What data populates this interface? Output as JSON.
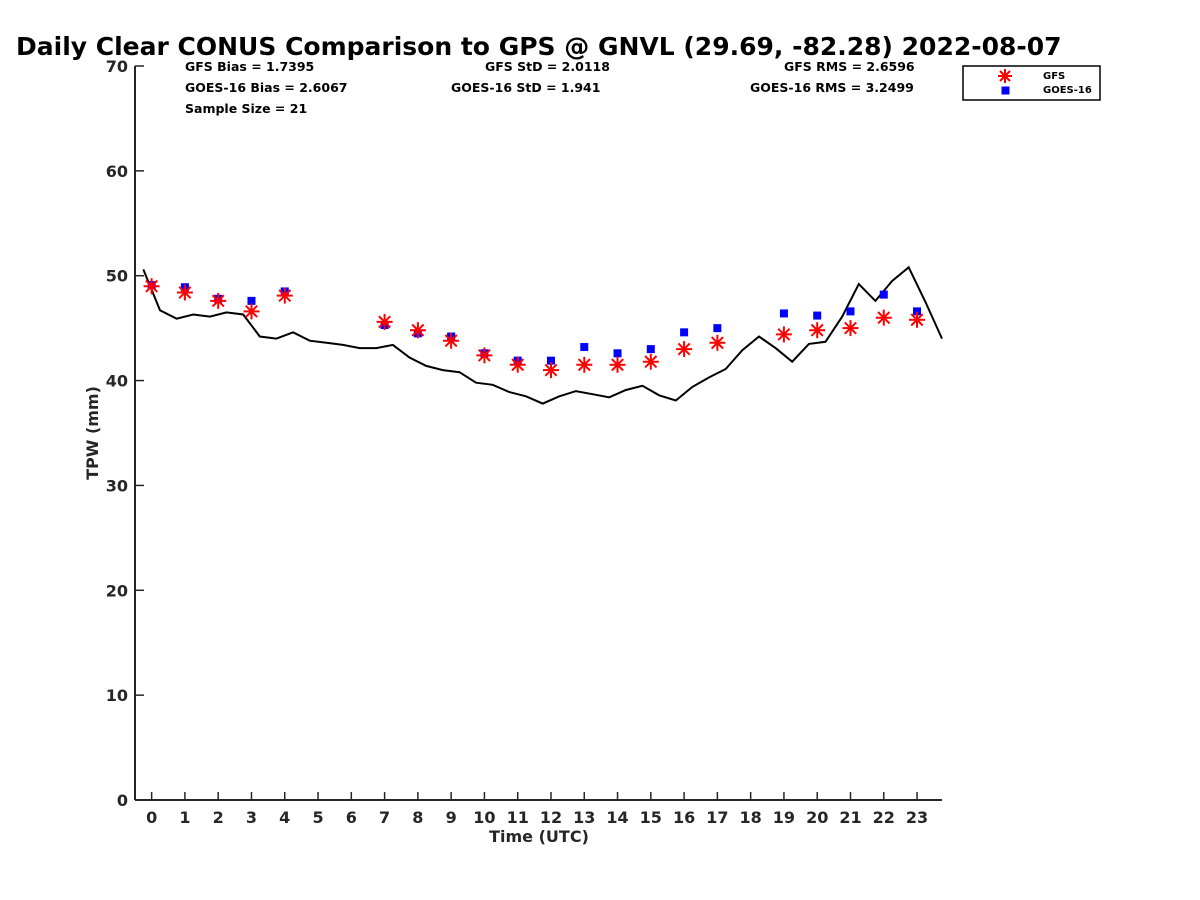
{
  "chart_data": {
    "type": "scatter",
    "title": "Daily Clear CONUS Comparison to GPS @ GNVL (29.69, -82.28) 2022-08-07",
    "xlabel": "Time (UTC)",
    "ylabel": "TPW (mm)",
    "xlim": [
      -0.5,
      23.75
    ],
    "ylim": [
      0,
      70
    ],
    "x_ticks": [
      "0",
      "1",
      "2",
      "3",
      "4",
      "5",
      "6",
      "7",
      "8",
      "9",
      "10",
      "11",
      "12",
      "13",
      "14",
      "15",
      "16",
      "17",
      "18",
      "19",
      "20",
      "21",
      "22",
      "23"
    ],
    "y_ticks": [
      "0",
      "10",
      "20",
      "30",
      "40",
      "50",
      "60",
      "70"
    ],
    "grid": false,
    "legend_position": "top-right",
    "stats": [
      "GFS Bias = 1.7395",
      "GFS StD = 2.0118",
      "GFS RMS = 2.6596",
      "GOES-16 Bias = 2.6067",
      "GOES-16 StD = 1.941",
      "GOES-16 RMS = 3.2499",
      "Sample Size = 21"
    ],
    "series": [
      {
        "name": "GFS",
        "marker": "asterisk",
        "color": "#ff0000",
        "points": [
          [
            0,
            49.0
          ],
          [
            1,
            48.4
          ],
          [
            2,
            47.6
          ],
          [
            3,
            46.6
          ],
          [
            4,
            48.1
          ],
          [
            7,
            45.6
          ],
          [
            8,
            44.8
          ],
          [
            9,
            43.8
          ],
          [
            10,
            42.4
          ],
          [
            11,
            41.5
          ],
          [
            12,
            41.0
          ],
          [
            13,
            41.5
          ],
          [
            14,
            41.5
          ],
          [
            15,
            41.8
          ],
          [
            16,
            43.0
          ],
          [
            17,
            43.6
          ],
          [
            19,
            44.4
          ],
          [
            20,
            44.8
          ],
          [
            21,
            45.0
          ],
          [
            22,
            46.0
          ],
          [
            23,
            45.8
          ]
        ]
      },
      {
        "name": "GOES-16",
        "marker": "square",
        "color": "#0000ff",
        "points": [
          [
            0,
            49.1
          ],
          [
            1,
            48.9
          ],
          [
            2,
            47.8
          ],
          [
            3,
            47.6
          ],
          [
            4,
            48.5
          ],
          [
            7,
            45.3
          ],
          [
            8,
            44.5
          ],
          [
            9,
            44.2
          ],
          [
            10,
            42.6
          ],
          [
            11,
            41.9
          ],
          [
            12,
            41.9
          ],
          [
            13,
            43.2
          ],
          [
            14,
            42.6
          ],
          [
            15,
            43.0
          ],
          [
            16,
            44.6
          ],
          [
            17,
            45.0
          ],
          [
            19,
            46.4
          ],
          [
            20,
            46.2
          ],
          [
            21,
            46.6
          ],
          [
            22,
            48.2
          ],
          [
            23,
            46.6
          ]
        ]
      },
      {
        "name": "GPS",
        "marker": "line",
        "color": "#000000",
        "points": [
          [
            -0.25,
            50.6
          ],
          [
            0.25,
            46.7
          ],
          [
            0.75,
            45.9
          ],
          [
            1.25,
            46.3
          ],
          [
            1.75,
            46.1
          ],
          [
            2.25,
            46.5
          ],
          [
            2.75,
            46.3
          ],
          [
            3.25,
            44.2
          ],
          [
            3.75,
            44.0
          ],
          [
            4.25,
            44.6
          ],
          [
            4.75,
            43.8
          ],
          [
            5.25,
            43.6
          ],
          [
            5.75,
            43.4
          ],
          [
            6.25,
            43.1
          ],
          [
            6.75,
            43.1
          ],
          [
            7.25,
            43.4
          ],
          [
            7.75,
            42.2
          ],
          [
            8.25,
            41.4
          ],
          [
            8.75,
            41.0
          ],
          [
            9.25,
            40.8
          ],
          [
            9.75,
            39.8
          ],
          [
            10.25,
            39.6
          ],
          [
            10.75,
            38.9
          ],
          [
            11.25,
            38.5
          ],
          [
            11.75,
            37.8
          ],
          [
            12.25,
            38.5
          ],
          [
            12.75,
            39.0
          ],
          [
            13.25,
            38.7
          ],
          [
            13.75,
            38.4
          ],
          [
            14.25,
            39.1
          ],
          [
            14.75,
            39.5
          ],
          [
            15.25,
            38.6
          ],
          [
            15.75,
            38.1
          ],
          [
            16.25,
            39.4
          ],
          [
            16.75,
            40.3
          ],
          [
            17.25,
            41.1
          ],
          [
            17.75,
            42.9
          ],
          [
            18.25,
            44.2
          ],
          [
            18.75,
            43.1
          ],
          [
            19.25,
            41.8
          ],
          [
            19.75,
            43.5
          ],
          [
            20.25,
            43.7
          ],
          [
            20.75,
            46.1
          ],
          [
            21.25,
            49.2
          ],
          [
            21.75,
            47.6
          ],
          [
            22.25,
            49.5
          ],
          [
            22.75,
            50.8
          ],
          [
            23.25,
            47.5
          ],
          [
            23.75,
            44.0
          ]
        ]
      }
    ]
  }
}
